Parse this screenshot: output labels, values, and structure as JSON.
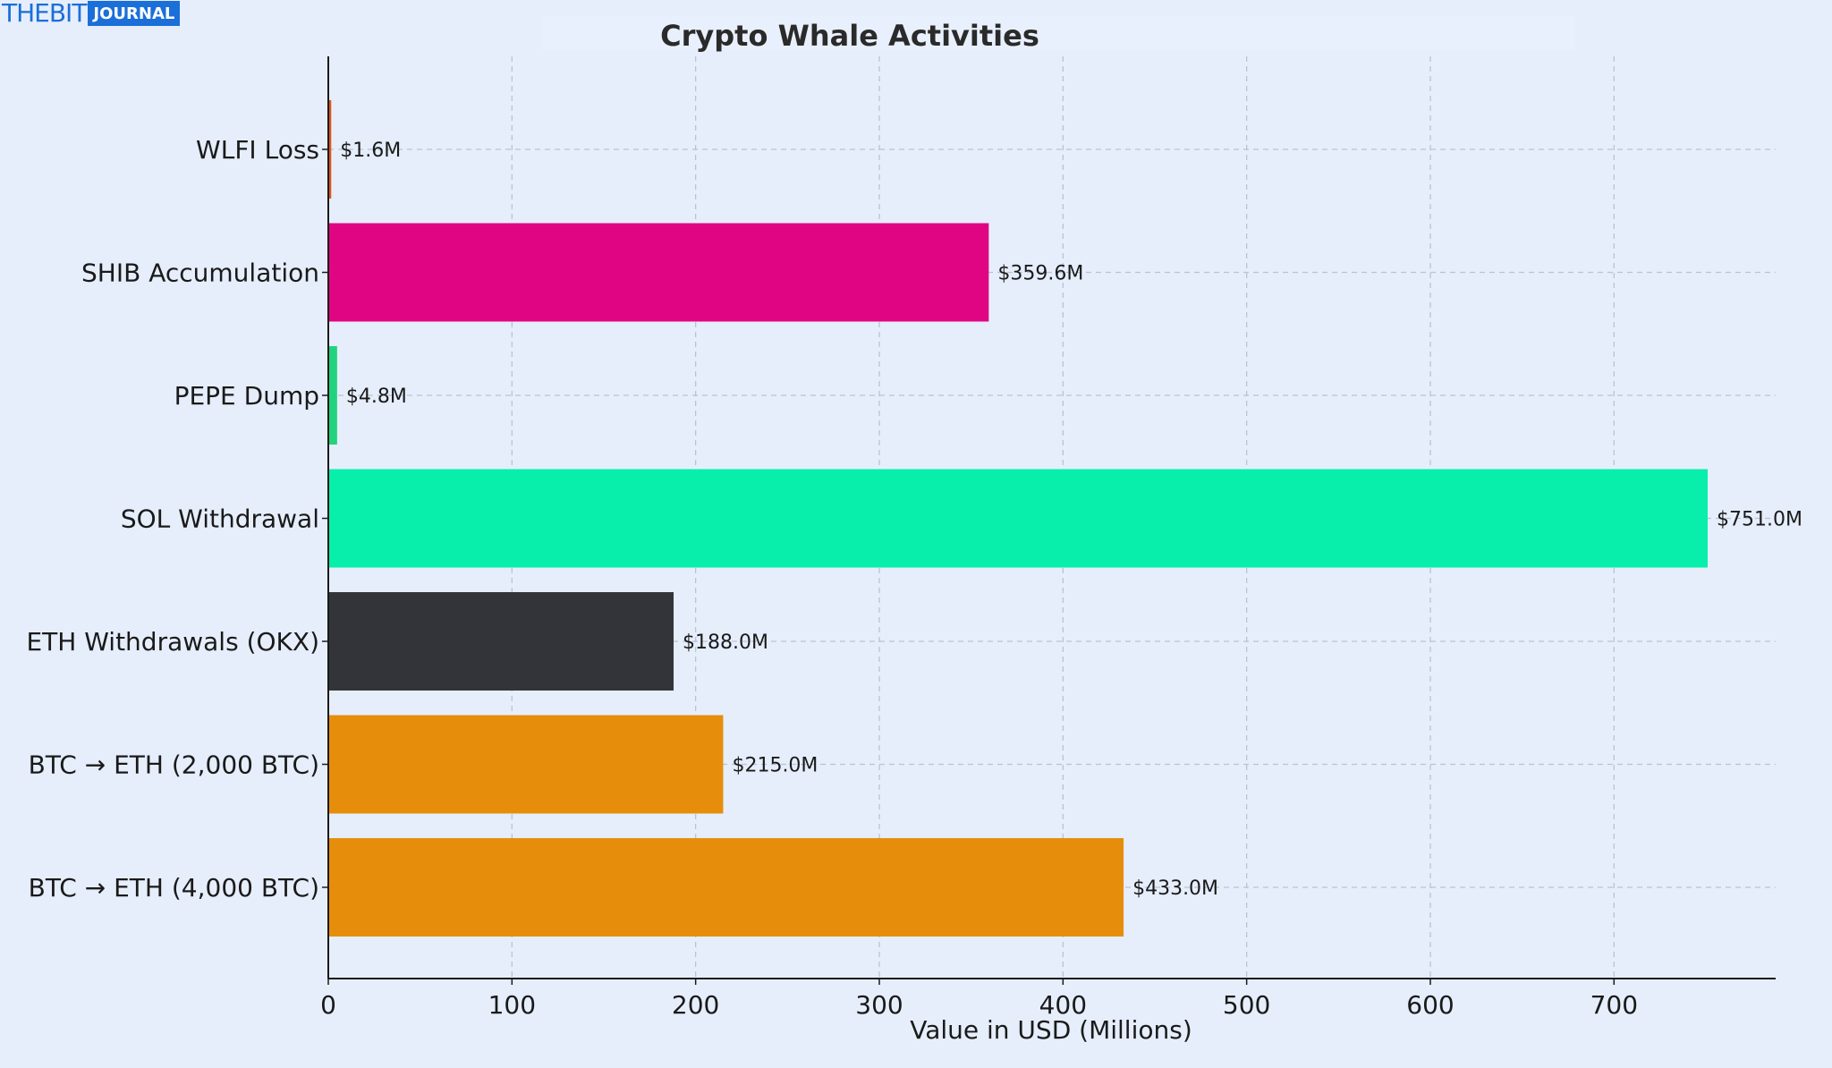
{
  "logo": {
    "brand_text": "THEBIT",
    "tag_text": "JOURNAL"
  },
  "chart_data": {
    "type": "bar",
    "orientation": "horizontal",
    "title": "Crypto Whale Activities",
    "xlabel": "Value in USD (Millions)",
    "ylabel": "",
    "xlim": [
      0,
      788
    ],
    "xticks": [
      0,
      100,
      200,
      300,
      400,
      500,
      600,
      700
    ],
    "grid": true,
    "categories": [
      "WLFI Loss",
      "SHIB Accumulation",
      "PEPE Dump",
      "SOL Withdrawal",
      "ETH Withdrawals (OKX)",
      "BTC → ETH (2,000 BTC)",
      "BTC → ETH (4,000 BTC)"
    ],
    "values": [
      1.6,
      359.6,
      4.8,
      751.0,
      188.0,
      215.0,
      433.0
    ],
    "value_labels": [
      "$1.6M",
      "$359.6M",
      "$4.8M",
      "$751.0M",
      "$188.0M",
      "$215.0M",
      "$433.0M"
    ],
    "colors": [
      "#e2561b",
      "#e00683",
      "#22d37e",
      "#08efab",
      "#33343a",
      "#e68e0c",
      "#e68e0c"
    ]
  }
}
